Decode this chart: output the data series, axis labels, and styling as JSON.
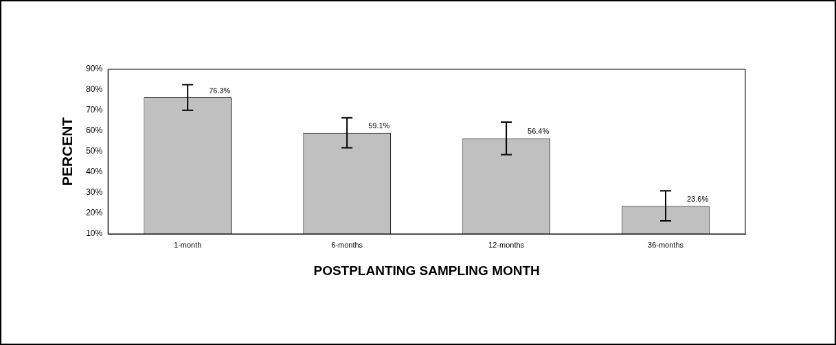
{
  "chart_data": {
    "type": "bar",
    "xlabel": "POSTPLANTING SAMPLING MONTH",
    "ylabel": "PERCENT",
    "categories": [
      "1-month",
      "6-months",
      "12-months",
      "36-months"
    ],
    "values": [
      76.3,
      59.1,
      56.4,
      23.6
    ],
    "errors": [
      6.2,
      7.3,
      7.9,
      7.3
    ],
    "value_labels": [
      "76.3%",
      "59.1%",
      "56.4%",
      "23.6%"
    ],
    "color": "#c0c0c0",
    "ylim": [
      10,
      90
    ],
    "yticks": [
      {
        "value": 10,
        "label": "10%"
      },
      {
        "value": 20,
        "label": "20%"
      },
      {
        "value": 30,
        "label": "30%"
      },
      {
        "value": 40,
        "label": "40%"
      },
      {
        "value": 50,
        "label": "50%"
      },
      {
        "value": 60,
        "label": "60%"
      },
      {
        "value": 70,
        "label": "70%"
      },
      {
        "value": 80,
        "label": "80%"
      },
      {
        "value": 90,
        "label": "90%"
      }
    ],
    "grid": false,
    "legend": false
  }
}
